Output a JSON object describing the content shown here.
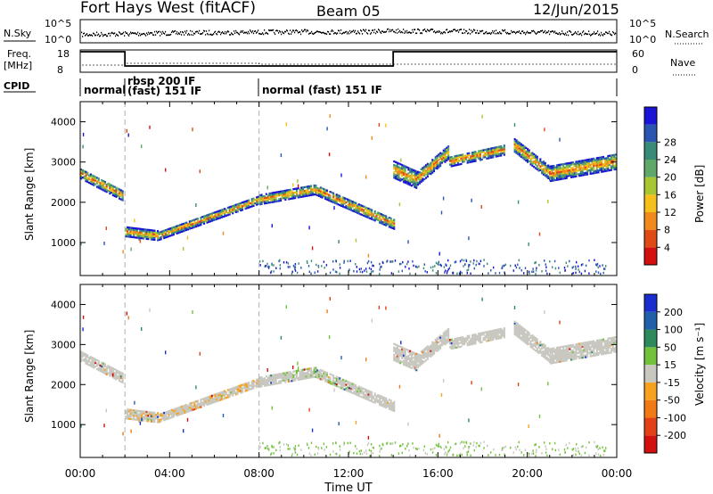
{
  "header": {
    "station": "Fort Hays West (fitACF)",
    "beam": "Beam 05",
    "date": "12/Jun/2015"
  },
  "labels": {
    "nsky": "N.Sky",
    "nsearch": "N.Search",
    "freq_line1": "Freq.",
    "freq_line2": "[MHz]",
    "nave": "Nave",
    "cpid": "CPID",
    "slant_range": "Slant Range [km]",
    "time_axis": "Time UT",
    "power_cbar": "Power [dB]",
    "velocity_cbar": "Velocity [m s⁻¹]"
  },
  "noise_axis": {
    "left_ticks": [
      "10^5",
      "10^0"
    ],
    "right_ticks": [
      "10^5",
      "10^0"
    ]
  },
  "freq_axis": {
    "left_ticks": [
      "18",
      "8"
    ],
    "right_ticks": [
      "60",
      "0"
    ]
  },
  "cpid_labels": [
    {
      "text": "normal",
      "start_hour": 0.1
    },
    {
      "text": "rbsp 200 IF",
      "start_hour": 2.0
    },
    {
      "text": "(fast) 151 IF",
      "start_hour": 2.0
    },
    {
      "text": "normal (fast) 151 IF",
      "start_hour": 8.1
    }
  ],
  "chart_data": [
    {
      "type": "heatmap",
      "name": "power",
      "ylabel": "Slant Range [km]",
      "ylim": [
        180,
        4500
      ],
      "y_ticks": [
        "1000",
        "2000",
        "3000",
        "4000"
      ],
      "xlim_hours": [
        0,
        24
      ],
      "x_ticks": [
        "00:00",
        "04:00",
        "08:00",
        "12:00",
        "16:00",
        "20:00",
        "00:00"
      ],
      "colorbar": {
        "label": "Power [dB]",
        "ticks": [
          "4",
          "8",
          "12",
          "16",
          "20",
          "24",
          "28"
        ],
        "colors": [
          "#1a14d6",
          "#2a55b0",
          "#3a8a78",
          "#5fa86a",
          "#a8c632",
          "#f5c019",
          "#f08a1d",
          "#e04a14",
          "#d40f0f"
        ]
      }
    },
    {
      "type": "heatmap",
      "name": "velocity",
      "ylabel": "Slant Range [km]",
      "ylim": [
        180,
        4500
      ],
      "y_ticks": [
        "1000",
        "2000",
        "3000",
        "4000"
      ],
      "xlim_hours": [
        0,
        24
      ],
      "x_ticks": [
        "00:00",
        "04:00",
        "08:00",
        "12:00",
        "16:00",
        "20:00",
        "00:00"
      ],
      "xlabel": "Time UT",
      "colorbar": {
        "label": "Velocity [m s⁻¹]",
        "ticks": [
          "200",
          "100",
          "50",
          "15",
          "-15",
          "-50",
          "-100",
          "-200"
        ],
        "colors": [
          "#1a2ed0",
          "#2060a8",
          "#2e8a5c",
          "#72c23c",
          "#c8c8c0",
          "#f6a21e",
          "#f27a14",
          "#e3401a",
          "#d21010"
        ]
      }
    }
  ],
  "echo_bands": [
    {
      "from_hour": 0.0,
      "to_hour": 1.9,
      "r0": 2700,
      "r1": 2150,
      "width": 260
    },
    {
      "from_hour": 2.0,
      "to_hour": 3.5,
      "r0": 1250,
      "r1": 1150,
      "width": 230
    },
    {
      "from_hour": 3.5,
      "to_hour": 8.0,
      "r0": 1150,
      "r1": 2050,
      "width": 200
    },
    {
      "from_hour": 8.0,
      "to_hour": 10.5,
      "r0": 2050,
      "r1": 2300,
      "width": 240
    },
    {
      "from_hour": 10.5,
      "to_hour": 14.0,
      "r0": 2300,
      "r1": 1450,
      "width": 260
    },
    {
      "from_hour": 14.0,
      "to_hour": 15.0,
      "r0": 2800,
      "r1": 2550,
      "width": 420
    },
    {
      "from_hour": 15.0,
      "to_hour": 16.5,
      "r0": 2550,
      "r1": 3250,
      "width": 330
    },
    {
      "from_hour": 16.5,
      "to_hour": 19.0,
      "r0": 3000,
      "r1": 3300,
      "width": 260
    },
    {
      "from_hour": 19.4,
      "to_hour": 21.0,
      "r0": 3400,
      "r1": 2700,
      "width": 330
    },
    {
      "from_hour": 21.0,
      "to_hour": 24.0,
      "r0": 2700,
      "r1": 3000,
      "width": 380
    }
  ],
  "cpid_switch_hours": [
    2.0,
    8.0
  ],
  "freq_step_hours": [
    2.0,
    14.0
  ]
}
